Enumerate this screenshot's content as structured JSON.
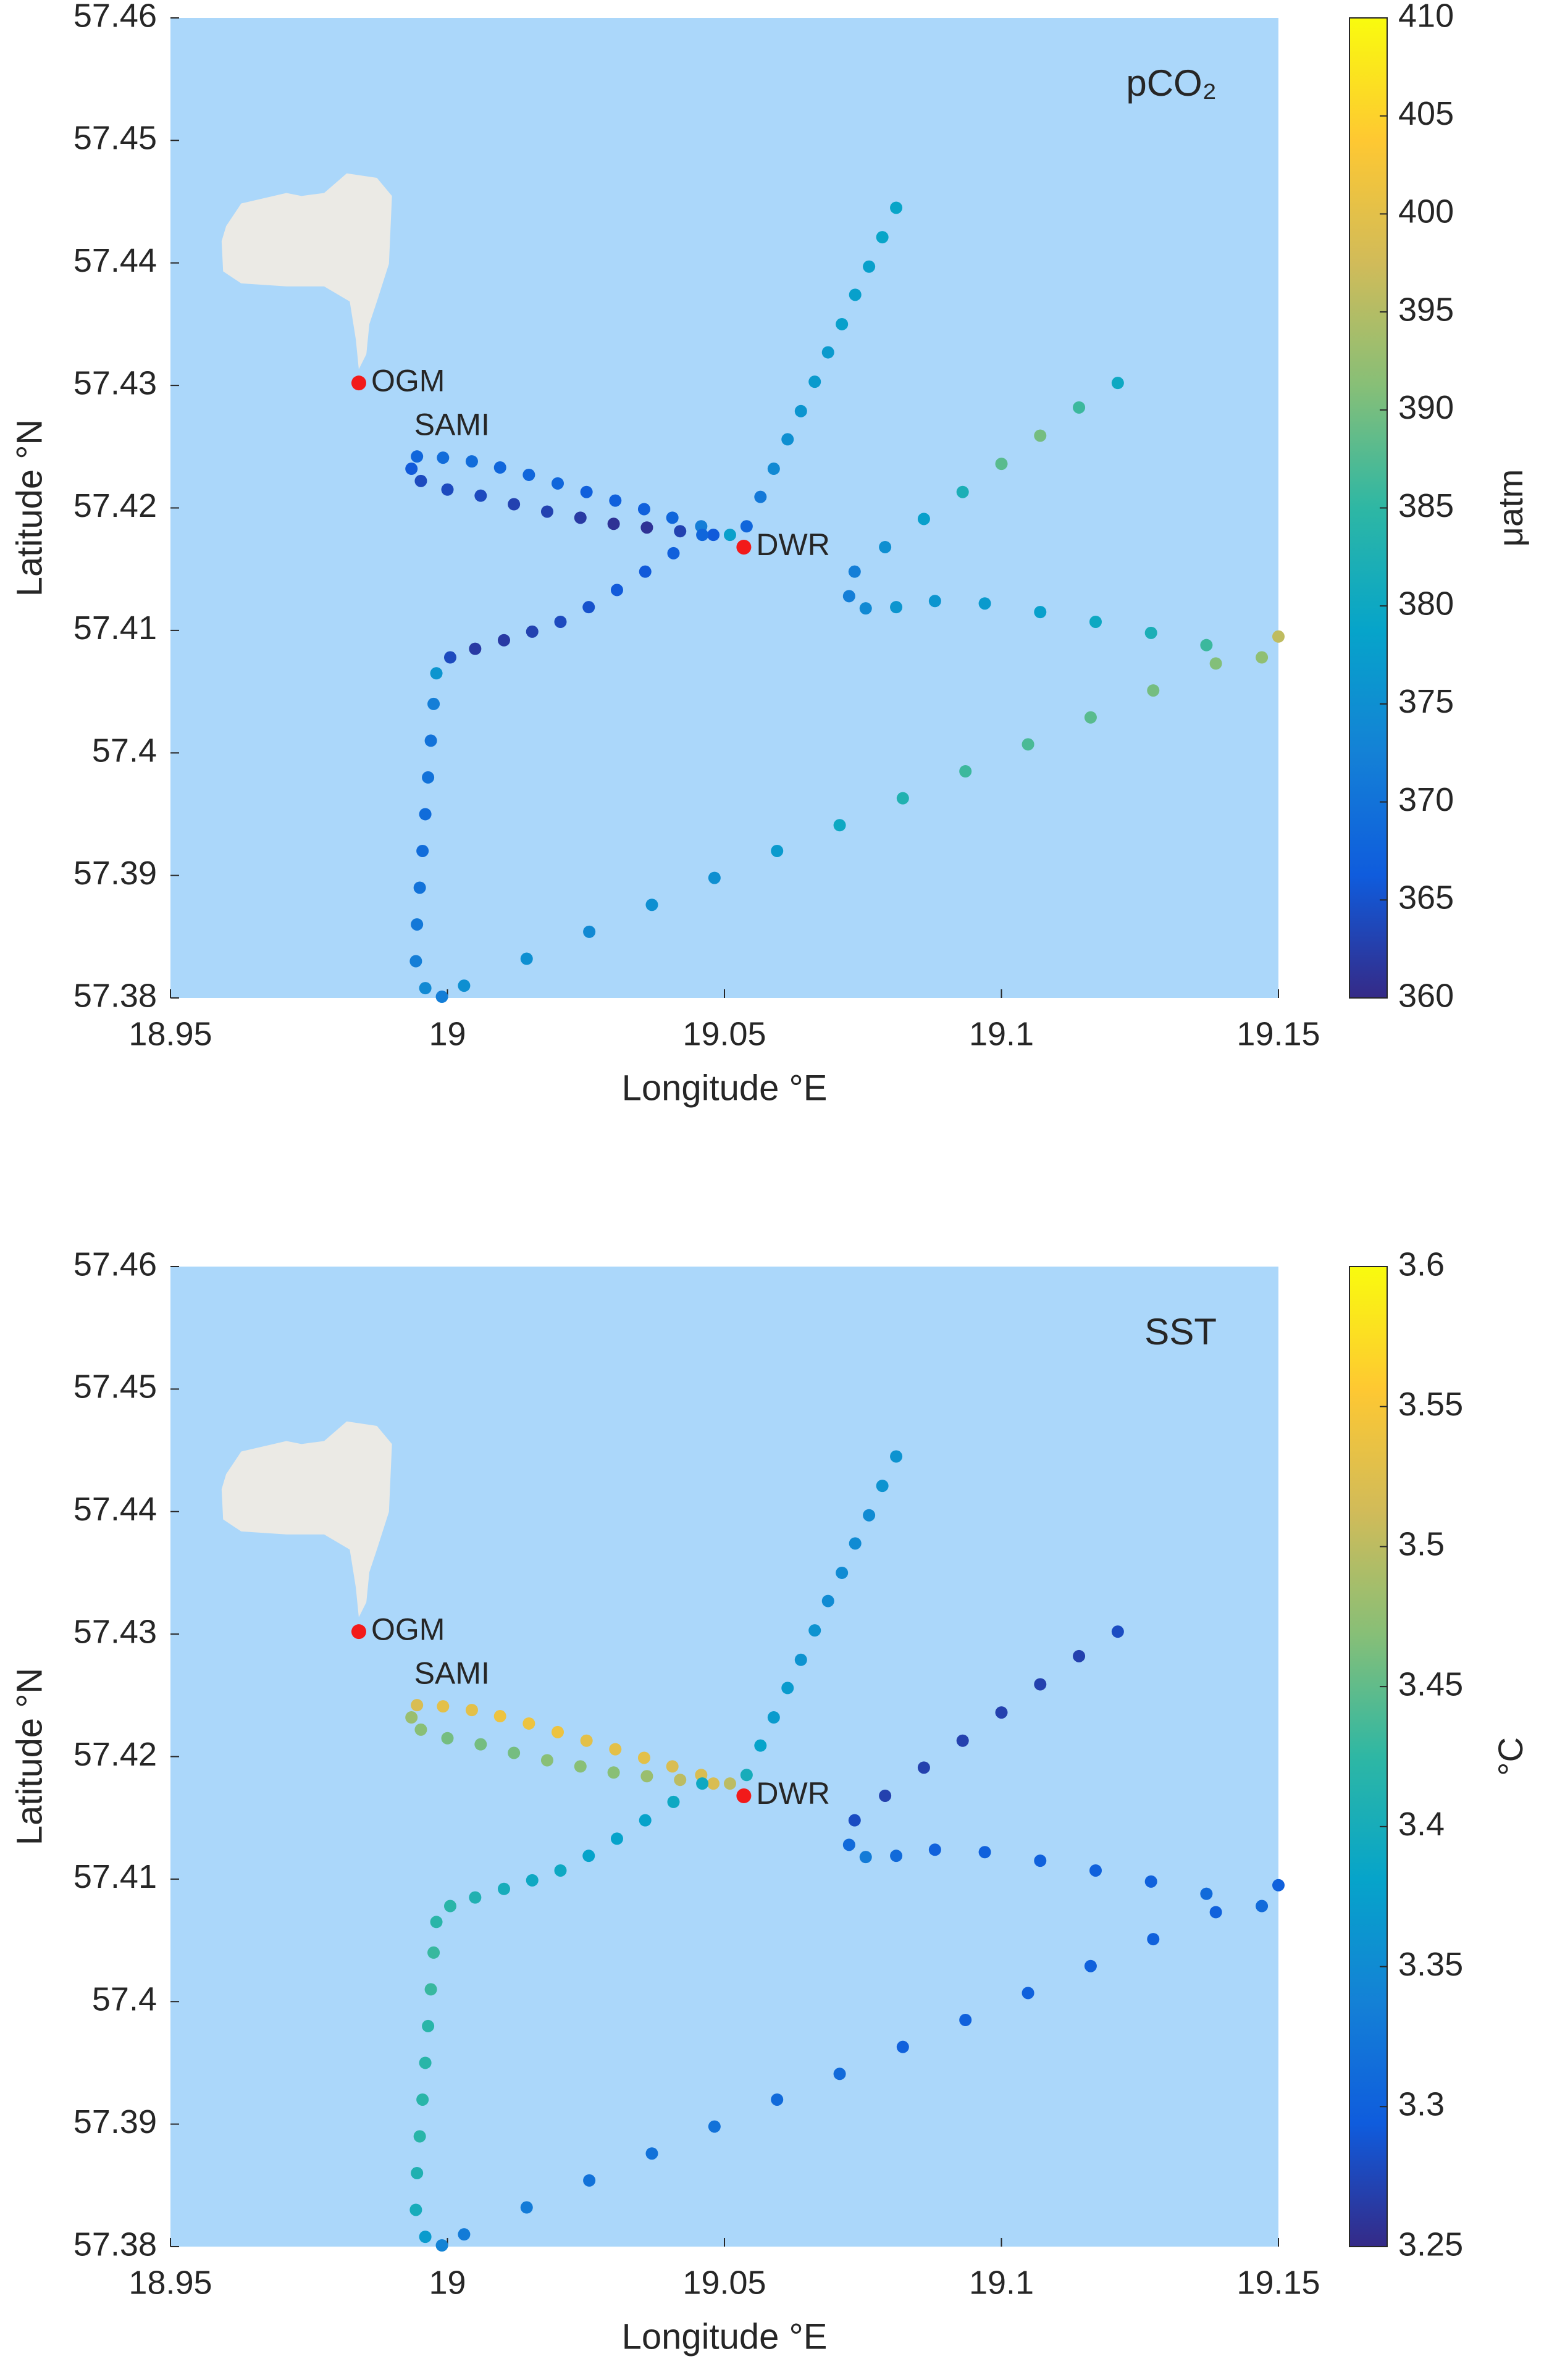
{
  "chart_data": [
    {
      "type": "scatter",
      "annotation": "pCO₂",
      "xlabel": "Longitude °E",
      "ylabel": "Latitude °N",
      "colorbar_label": "μatm",
      "xlim": [
        18.95,
        19.15
      ],
      "xticks": [
        18.95,
        19,
        19.05,
        19.1,
        19.15
      ],
      "ylim": [
        57.38,
        57.46
      ],
      "yticks": [
        57.38,
        57.39,
        57.4,
        57.41,
        57.42,
        57.43,
        57.44,
        57.45,
        57.46
      ],
      "clim": [
        360,
        410
      ],
      "cticks": [
        360,
        365,
        370,
        375,
        380,
        385,
        390,
        395,
        400,
        405,
        410
      ],
      "colormap": [
        "#352a87",
        "#0f5cdd",
        "#1481d6",
        "#06a4ca",
        "#2eb7a4",
        "#87bf77",
        "#d1bb59",
        "#fec832",
        "#f9fb0e"
      ],
      "x": [
        19.081,
        19.0785,
        19.0761,
        19.0736,
        19.0712,
        19.0687,
        19.0663,
        19.0638,
        19.0614,
        19.0589,
        19.0565,
        19.054,
        19.051,
        19.0458,
        19.0406,
        19.0355,
        19.0303,
        19.0251,
        19.0199,
        19.0147,
        19.0095,
        19.0044,
        18.9992,
        18.9945,
        18.9935,
        18.9952,
        19.0,
        19.006,
        19.012,
        19.018,
        19.024,
        19.03,
        19.036,
        19.042,
        19.048,
        19.046,
        19.0408,
        19.0357,
        19.0306,
        19.0255,
        19.0204,
        19.0153,
        19.0102,
        19.005,
        19.0005,
        18.998,
        18.9975,
        18.997,
        18.9965,
        18.996,
        18.9955,
        18.995,
        18.9945,
        18.9943,
        18.996,
        18.999,
        19.003,
        19.0143,
        19.0256,
        19.0369,
        19.0482,
        19.0595,
        19.0708,
        19.0822,
        19.0935,
        19.1048,
        19.1161,
        19.1274,
        19.1387,
        19.15,
        19.147,
        19.137,
        19.127,
        19.117,
        19.107,
        19.097,
        19.088,
        19.081,
        19.0755,
        19.0725,
        19.0735,
        19.079,
        19.086,
        19.093,
        19.1,
        19.107,
        19.114,
        19.121
      ],
      "y": [
        57.4445,
        57.4421,
        57.4397,
        57.4374,
        57.435,
        57.4327,
        57.4303,
        57.4279,
        57.4256,
        57.4232,
        57.4209,
        57.4185,
        57.4178,
        57.4185,
        57.4192,
        57.4199,
        57.4206,
        57.4213,
        57.422,
        57.4227,
        57.4233,
        57.4238,
        57.4241,
        57.4242,
        57.4232,
        57.4222,
        57.4215,
        57.421,
        57.4203,
        57.4197,
        57.4192,
        57.4187,
        57.4184,
        57.4181,
        57.4178,
        57.4178,
        57.4163,
        57.4148,
        57.4133,
        57.4119,
        57.4107,
        57.4099,
        57.4092,
        57.4085,
        57.4078,
        57.4065,
        57.404,
        57.401,
        57.398,
        57.395,
        57.392,
        57.389,
        57.386,
        57.383,
        57.3808,
        57.3801,
        57.381,
        57.3832,
        57.3854,
        57.3876,
        57.3898,
        57.392,
        57.3941,
        57.3963,
        57.3985,
        57.4007,
        57.4029,
        57.4051,
        57.4073,
        57.4095,
        57.4078,
        57.4088,
        57.4098,
        57.4107,
        57.4115,
        57.4122,
        57.4124,
        57.4119,
        57.4118,
        57.4128,
        57.4148,
        57.4168,
        57.4191,
        57.4213,
        57.4236,
        57.4259,
        57.4282,
        57.4302
      ],
      "values": [
        379,
        379,
        378,
        378,
        378,
        377,
        377,
        376,
        375,
        374,
        371,
        368,
        378,
        372,
        368,
        367,
        367,
        367,
        368,
        368,
        368,
        369,
        369,
        368,
        366,
        364,
        364,
        364,
        363,
        363,
        362,
        361,
        361,
        363,
        366,
        368,
        367,
        366,
        366,
        365,
        364,
        363,
        362,
        362,
        364,
        376,
        372,
        370,
        370,
        369,
        369,
        370,
        371,
        372,
        374,
        372,
        375,
        375,
        374,
        375,
        375,
        377,
        380,
        383,
        386,
        387,
        388,
        390,
        391,
        396,
        392,
        386,
        382,
        380,
        378,
        377,
        376,
        376,
        374,
        372,
        372,
        375,
        378,
        382,
        388,
        390,
        386,
        380
      ],
      "stations": [
        {
          "label": "OGM",
          "x": 18.984,
          "y": 57.4302
        },
        {
          "label": "DWR",
          "x": 19.0535,
          "y": 57.4168
        }
      ],
      "labels": [
        {
          "text": "SAMI",
          "x": 18.994,
          "y": 57.4245
        }
      ]
    },
    {
      "type": "scatter",
      "annotation": "SST",
      "xlabel": "Longitude °E",
      "ylabel": "Latitude °N",
      "colorbar_label": "°C",
      "xlim": [
        18.95,
        19.15
      ],
      "xticks": [
        18.95,
        19,
        19.05,
        19.1,
        19.15
      ],
      "ylim": [
        57.38,
        57.46
      ],
      "yticks": [
        57.38,
        57.39,
        57.4,
        57.41,
        57.42,
        57.43,
        57.44,
        57.45,
        57.46
      ],
      "clim": [
        3.25,
        3.6
      ],
      "cticks": [
        3.25,
        3.3,
        3.35,
        3.4,
        3.45,
        3.5,
        3.55,
        3.6
      ],
      "colormap": [
        "#352a87",
        "#0f5cdd",
        "#1481d6",
        "#06a4ca",
        "#2eb7a4",
        "#87bf77",
        "#d1bb59",
        "#fec832",
        "#f9fb0e"
      ],
      "x": [
        19.081,
        19.0785,
        19.0761,
        19.0736,
        19.0712,
        19.0687,
        19.0663,
        19.0638,
        19.0614,
        19.0589,
        19.0565,
        19.054,
        19.051,
        19.0458,
        19.0406,
        19.0355,
        19.0303,
        19.0251,
        19.0199,
        19.0147,
        19.0095,
        19.0044,
        18.9992,
        18.9945,
        18.9935,
        18.9952,
        19.0,
        19.006,
        19.012,
        19.018,
        19.024,
        19.03,
        19.036,
        19.042,
        19.048,
        19.046,
        19.0408,
        19.0357,
        19.0306,
        19.0255,
        19.0204,
        19.0153,
        19.0102,
        19.005,
        19.0005,
        18.998,
        18.9975,
        18.997,
        18.9965,
        18.996,
        18.9955,
        18.995,
        18.9945,
        18.9943,
        18.996,
        18.999,
        19.003,
        19.0143,
        19.0256,
        19.0369,
        19.0482,
        19.0595,
        19.0708,
        19.0822,
        19.0935,
        19.1048,
        19.1161,
        19.1274,
        19.1387,
        19.15,
        19.147,
        19.137,
        19.127,
        19.117,
        19.107,
        19.097,
        19.088,
        19.081,
        19.0755,
        19.0725,
        19.0735,
        19.079,
        19.086,
        19.093,
        19.1,
        19.107,
        19.114,
        19.121
      ],
      "y": [
        57.4445,
        57.4421,
        57.4397,
        57.4374,
        57.435,
        57.4327,
        57.4303,
        57.4279,
        57.4256,
        57.4232,
        57.4209,
        57.4185,
        57.4178,
        57.4185,
        57.4192,
        57.4199,
        57.4206,
        57.4213,
        57.422,
        57.4227,
        57.4233,
        57.4238,
        57.4241,
        57.4242,
        57.4232,
        57.4222,
        57.4215,
        57.421,
        57.4203,
        57.4197,
        57.4192,
        57.4187,
        57.4184,
        57.4181,
        57.4178,
        57.4178,
        57.4163,
        57.4148,
        57.4133,
        57.4119,
        57.4107,
        57.4099,
        57.4092,
        57.4085,
        57.4078,
        57.4065,
        57.404,
        57.401,
        57.398,
        57.395,
        57.392,
        57.389,
        57.386,
        57.383,
        57.3808,
        57.3801,
        57.381,
        57.3832,
        57.3854,
        57.3876,
        57.3898,
        57.392,
        57.3941,
        57.3963,
        57.3985,
        57.4007,
        57.4029,
        57.4051,
        57.4073,
        57.4095,
        57.4078,
        57.4088,
        57.4098,
        57.4107,
        57.4115,
        57.4122,
        57.4124,
        57.4119,
        57.4118,
        57.4128,
        57.4148,
        57.4168,
        57.4191,
        57.4213,
        57.4236,
        57.4259,
        57.4282,
        57.4302
      ],
      "values": [
        3.36,
        3.36,
        3.35,
        3.35,
        3.35,
        3.35,
        3.36,
        3.36,
        3.37,
        3.37,
        3.38,
        3.4,
        3.5,
        3.52,
        3.52,
        3.53,
        3.53,
        3.53,
        3.54,
        3.54,
        3.54,
        3.53,
        3.53,
        3.52,
        3.48,
        3.47,
        3.46,
        3.46,
        3.46,
        3.47,
        3.47,
        3.47,
        3.48,
        3.5,
        3.52,
        3.39,
        3.39,
        3.38,
        3.38,
        3.38,
        3.39,
        3.39,
        3.4,
        3.41,
        3.42,
        3.42,
        3.43,
        3.43,
        3.42,
        3.42,
        3.42,
        3.42,
        3.41,
        3.4,
        3.37,
        3.34,
        3.33,
        3.33,
        3.32,
        3.32,
        3.32,
        3.31,
        3.31,
        3.3,
        3.3,
        3.3,
        3.3,
        3.3,
        3.3,
        3.3,
        3.31,
        3.31,
        3.3,
        3.3,
        3.3,
        3.3,
        3.3,
        3.31,
        3.33,
        3.31,
        3.28,
        3.27,
        3.27,
        3.27,
        3.27,
        3.27,
        3.27,
        3.28
      ],
      "stations": [
        {
          "label": "OGM",
          "x": 18.984,
          "y": 57.4302
        },
        {
          "label": "DWR",
          "x": 19.0535,
          "y": 57.4168
        }
      ],
      "labels": [
        {
          "text": "SAMI",
          "x": 18.994,
          "y": 57.4245
        }
      ]
    }
  ]
}
